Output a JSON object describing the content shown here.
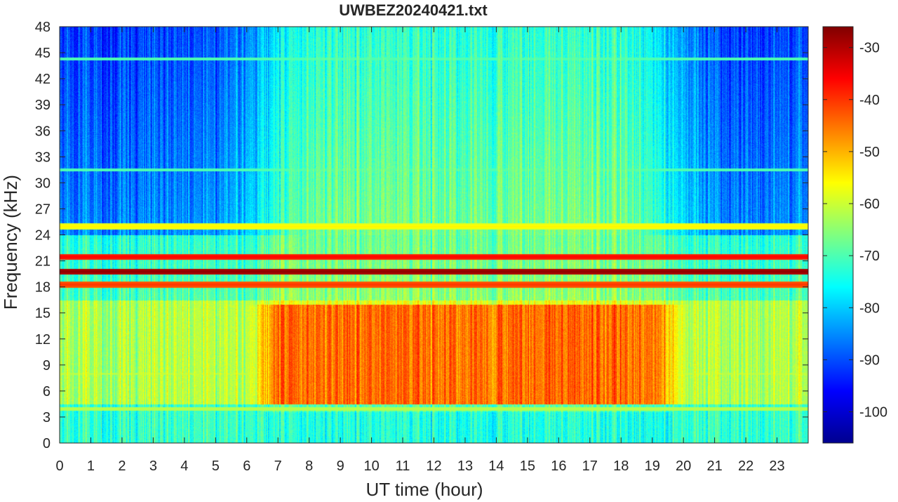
{
  "chart_data": {
    "type": "heatmap",
    "title": "UWBEZ20240421.txt",
    "xlabel": "UT time (hour)",
    "ylabel": "Frequency (kHz)",
    "xlim": [
      0,
      24
    ],
    "ylim": [
      0,
      48
    ],
    "x_ticks": [
      "0",
      "1",
      "2",
      "3",
      "4",
      "5",
      "6",
      "7",
      "8",
      "9",
      "10",
      "11",
      "12",
      "13",
      "14",
      "15",
      "16",
      "17",
      "18",
      "19",
      "20",
      "21",
      "22",
      "23"
    ],
    "y_ticks": [
      "0",
      "3",
      "6",
      "9",
      "12",
      "15",
      "18",
      "21",
      "24",
      "27",
      "30",
      "33",
      "36",
      "39",
      "42",
      "45",
      "48"
    ],
    "colorbar": {
      "colormap": "jet",
      "clim": [
        -106,
        -26
      ],
      "ticks": [
        "-100",
        "-90",
        "-80",
        "-70",
        "-60",
        "-50",
        "-40",
        "-30"
      ]
    },
    "features": {
      "strong_tones_khz": [
        19.8,
        18.3,
        21.5,
        25.0
      ],
      "daytime_band": {
        "x_range": [
          6.2,
          19.8
        ],
        "freq_range_khz": [
          4,
          16
        ],
        "level_db": -45
      },
      "night_background_db": -85
    }
  }
}
